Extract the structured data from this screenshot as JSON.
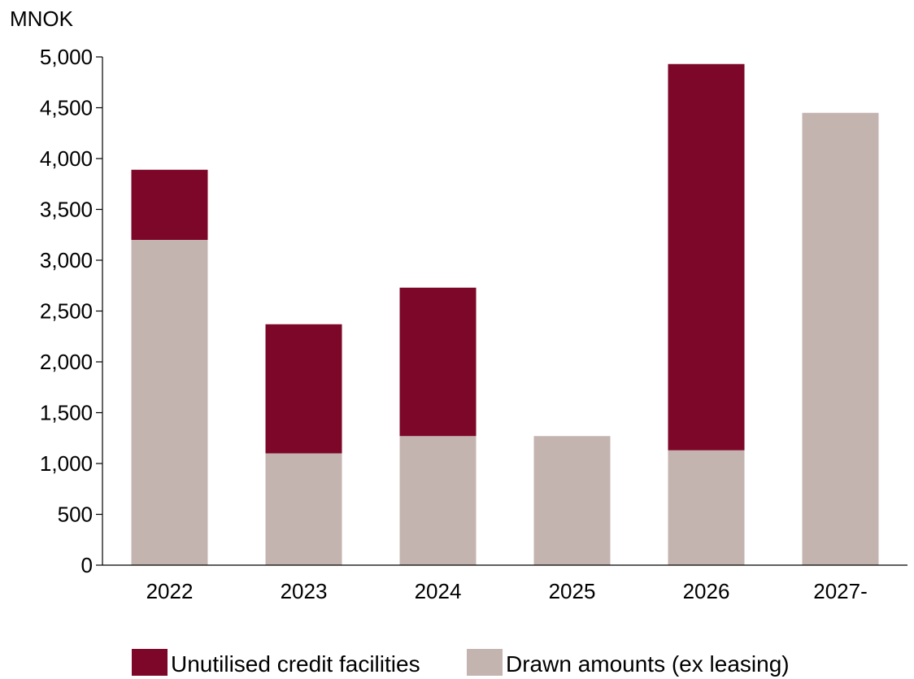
{
  "chart_data": {
    "type": "bar",
    "stacked": true,
    "title": "",
    "xlabel": "",
    "ylabel": "MNOK",
    "categories": [
      "2022",
      "2023",
      "2024",
      "2025",
      "2026",
      "2027-"
    ],
    "series": [
      {
        "name": "Drawn amounts (ex leasing)",
        "color": "#c4b4b0",
        "values": [
          3200,
          1100,
          1270,
          1270,
          1130,
          4450
        ]
      },
      {
        "name": "Unutilised credit facilities",
        "color": "#7d0729",
        "values": [
          690,
          1270,
          1460,
          0,
          3800,
          0
        ]
      }
    ],
    "ylim": [
      0,
      5000
    ],
    "yticks": [
      0,
      500,
      1000,
      1500,
      2000,
      2500,
      3000,
      3500,
      4000,
      4500,
      5000
    ],
    "ytick_labels": [
      "0",
      "500",
      "1,000",
      "1,500",
      "2,000",
      "2,500",
      "3,000",
      "3,500",
      "4,000",
      "4,500",
      "5,000"
    ],
    "grid": false,
    "legend": {
      "placement": "bottom",
      "order": [
        "Unutilised credit facilities",
        "Drawn amounts (ex leasing)"
      ]
    }
  }
}
